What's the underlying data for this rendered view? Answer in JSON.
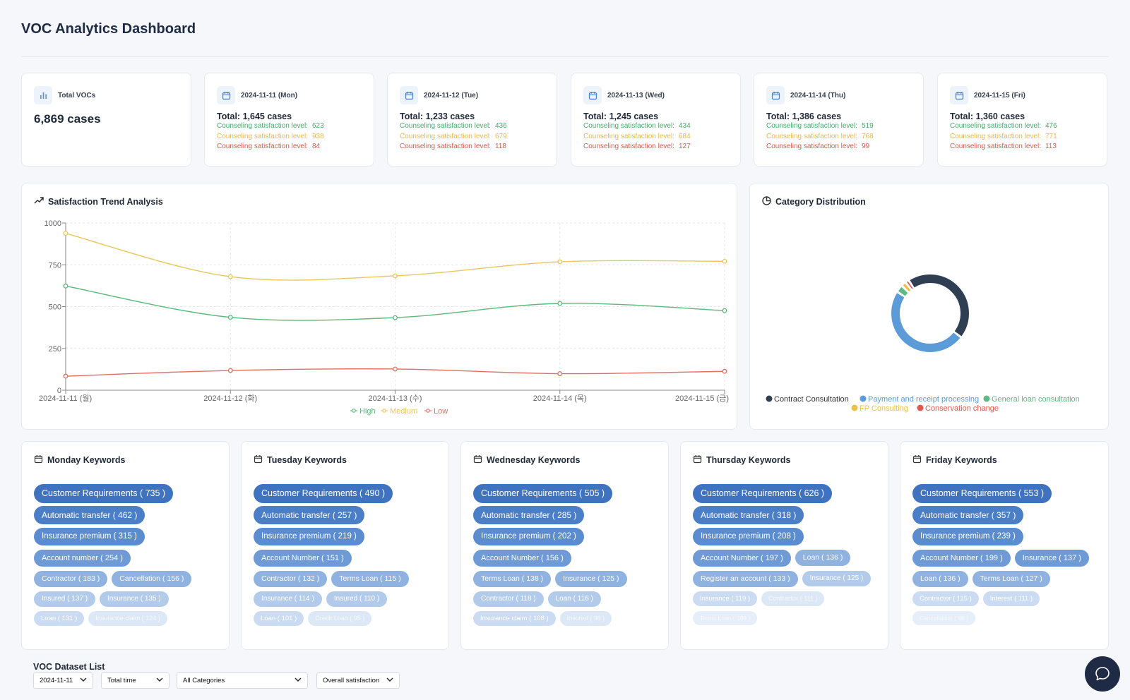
{
  "page_title": "VOC Analytics Dashboard",
  "summary": {
    "label": "Total VOCs",
    "value": "6,869 cases"
  },
  "days": [
    {
      "date": "2024-11-11 (Mon)",
      "total": "Total: 1,645 cases",
      "label": "Counseling satisfaction level:",
      "high": "623",
      "medium": "938",
      "low": "84"
    },
    {
      "date": "2024-11-12 (Tue)",
      "total": "Total: 1,233 cases",
      "label": "Counseling satisfaction level:",
      "high": "436",
      "medium": "679",
      "low": "118"
    },
    {
      "date": "2024-11-13 (Wed)",
      "total": "Total: 1,245 cases",
      "label": "Counseling satisfaction level:",
      "high": "434",
      "medium": "684",
      "low": "127"
    },
    {
      "date": "2024-11-14 (Thu)",
      "total": "Total: 1,386 cases",
      "label": "Counseling satisfaction level:",
      "high": "519",
      "medium": "768",
      "low": "99"
    },
    {
      "date": "2024-11-15 (Fri)",
      "total": "Total: 1,360 cases",
      "label": "Counseling satisfaction level:",
      "high": "476",
      "medium": "771",
      "low": "113"
    }
  ],
  "trend": {
    "title": "Satisfaction Trend Analysis",
    "chart_data": {
      "type": "line",
      "x": [
        "2024-11-11 (월)",
        "2024-11-12 (화)",
        "2024-11-13 (수)",
        "2024-11-14 (목)",
        "2024-11-15 (금)"
      ],
      "yticks": [
        "0",
        "250",
        "500",
        "750",
        "1000"
      ],
      "ylim": [
        0,
        1000
      ],
      "grid": true,
      "legend": "bottom",
      "series": [
        {
          "name": "High",
          "color": "#5cb97a",
          "values": [
            623,
            436,
            434,
            519,
            476
          ]
        },
        {
          "name": "Medium",
          "color": "#e9c75a",
          "values": [
            938,
            679,
            684,
            768,
            771
          ]
        },
        {
          "name": "Low",
          "color": "#e36d63",
          "values": [
            84,
            118,
            127,
            99,
            113
          ]
        }
      ]
    }
  },
  "category": {
    "title": "Category Distribution",
    "chart_data": {
      "type": "pie",
      "categories": [
        "Contract Consultation",
        "Payment and receipt processing",
        "General loan consultation",
        "FP Consulting",
        "Conservation change"
      ],
      "values": [
        44,
        48,
        3,
        2,
        1.5
      ],
      "colors": [
        "#2f3e52",
        "#5a9bd8",
        "#5cba82",
        "#e9c04b",
        "#e2574c"
      ],
      "legend": "bottom"
    }
  },
  "keywords": [
    {
      "title": "Monday  Keywords",
      "rows": [
        [
          {
            "text": "Customer Requirements ( 735 )",
            "level": 0
          }
        ],
        [
          {
            "text": "Automatic transfer ( 462 )",
            "level": 1
          }
        ],
        [
          {
            "text": "Insurance premium ( 315 )",
            "level": 2
          }
        ],
        [
          {
            "text": "Account number ( 254 )",
            "level": 3
          }
        ],
        [
          {
            "text": "Contractor ( 183 )",
            "level": 4
          },
          {
            "text": "Cancellation ( 156 )",
            "level": 4
          }
        ],
        [
          {
            "text": "Insured ( 137 )",
            "level": 5
          },
          {
            "text": "Insurance ( 135 )",
            "level": 5
          }
        ],
        [
          {
            "text": "Loan ( 131 )",
            "level": 6
          },
          {
            "text": "Insurance claim ( 124 )",
            "level": 7
          }
        ]
      ]
    },
    {
      "title": "Tuesday  Keywords",
      "rows": [
        [
          {
            "text": "Customer Requirements ( 490 )",
            "level": 0
          }
        ],
        [
          {
            "text": "Automatic transfer ( 257 )",
            "level": 1
          }
        ],
        [
          {
            "text": "Insurance premium ( 219 )",
            "level": 2
          }
        ],
        [
          {
            "text": "Account Number ( 151 )",
            "level": 3
          }
        ],
        [
          {
            "text": "Contractor ( 132 )",
            "level": 4
          },
          {
            "text": "Terms Loan ( 115 )",
            "level": 4
          }
        ],
        [
          {
            "text": "Insurance ( 114 )",
            "level": 5
          },
          {
            "text": "Insured ( 110 )",
            "level": 5
          }
        ],
        [
          {
            "text": "Loan ( 101 )",
            "level": 6
          },
          {
            "text": "Credit Loan ( 95 )",
            "level": 7
          }
        ]
      ]
    },
    {
      "title": "Wednesday  Keywords",
      "rows": [
        [
          {
            "text": "Customer Requirements ( 505 )",
            "level": 0
          }
        ],
        [
          {
            "text": "Automatic transfer ( 285 )",
            "level": 1
          }
        ],
        [
          {
            "text": "Insurance premium ( 202 )",
            "level": 2
          }
        ],
        [
          {
            "text": "Account Number ( 156 )",
            "level": 3
          }
        ],
        [
          {
            "text": "Terms Loan ( 138 )",
            "level": 4
          },
          {
            "text": "Insurance ( 125 )",
            "level": 4
          }
        ],
        [
          {
            "text": "Contractor ( 118 )",
            "level": 5
          },
          {
            "text": "Loan ( 116 )",
            "level": 5
          }
        ],
        [
          {
            "text": "Insurance claim ( 108 )",
            "level": 6
          },
          {
            "text": "Insured ( 98 )",
            "level": 7
          }
        ]
      ]
    },
    {
      "title": "Thursday  Keywords",
      "rows": [
        [
          {
            "text": "Customer Requirements ( 626 )",
            "level": 0
          }
        ],
        [
          {
            "text": "Automatic transfer ( 318 )",
            "level": 1
          }
        ],
        [
          {
            "text": "Insurance premium ( 208 )",
            "level": 2
          }
        ],
        [
          {
            "text": "Account Number ( 197 )",
            "level": 3
          },
          {
            "text": "Loan ( 136 )",
            "level": 4
          }
        ],
        [
          {
            "text": "Register an account ( 133 )",
            "level": 4
          },
          {
            "text": "Insurance ( 125 )",
            "level": 5
          }
        ],
        [
          {
            "text": "Insurance ( 119 )",
            "level": 6
          },
          {
            "text": "Contractor ( 111 )",
            "level": 7
          }
        ],
        [
          {
            "text": "Terms Loan ( 108 )",
            "level": 8
          }
        ]
      ]
    },
    {
      "title": "Friday  Keywords",
      "rows": [
        [
          {
            "text": "Customer Requirements ( 553 )",
            "level": 0
          }
        ],
        [
          {
            "text": "Automatic transfer ( 357 )",
            "level": 1
          }
        ],
        [
          {
            "text": "Insurance premium ( 239 )",
            "level": 2
          }
        ],
        [
          {
            "text": "Account Number ( 199 )",
            "level": 3
          },
          {
            "text": "Insurance ( 137 )",
            "level": 3
          }
        ],
        [
          {
            "text": "Loan ( 136 )",
            "level": 4
          },
          {
            "text": "Terms Loan ( 127 )",
            "level": 4
          }
        ],
        [
          {
            "text": "Contractor ( 115 )",
            "level": 6
          },
          {
            "text": "Interest ( 111 )",
            "level": 6
          }
        ],
        [
          {
            "text": "Cancellation ( 98 )",
            "level": 8
          }
        ]
      ]
    }
  ],
  "dataset": {
    "title": "VOC Dataset List",
    "filters": [
      "2024-11-11",
      "Total time",
      "All Categories",
      "Overall satisfaction"
    ]
  },
  "icons": {
    "stat": "bar-chart-icon",
    "day": "calendar-icon",
    "trend": "trending-up-icon",
    "category": "pie-chart-icon",
    "chat": "chat-icon"
  }
}
